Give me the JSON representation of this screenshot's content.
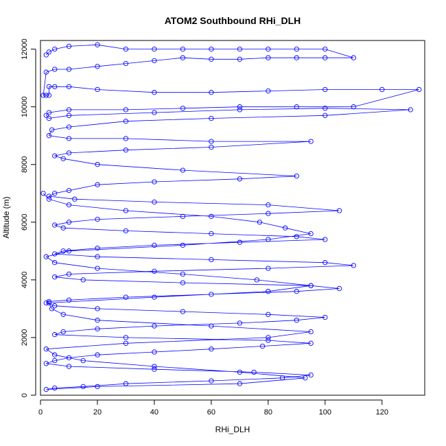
{
  "chart_data": {
    "type": "scatter",
    "title": "ATOM2 Southbound RHi_DLH",
    "xlabel": "RHi_DLH",
    "ylabel": "Altitude (m)",
    "xlim": [
      0,
      135
    ],
    "ylim": [
      0,
      12300
    ],
    "x_ticks": [
      "0",
      "20",
      "40",
      "60",
      "80",
      "100",
      "120"
    ],
    "y_ticks": [
      "0",
      "2000",
      "4000",
      "6000",
      "8000",
      "10000",
      "12000"
    ],
    "grid": false,
    "legend": "none",
    "marker": "open-circle",
    "connected": true,
    "color": "#0000ff",
    "series": [
      {
        "x": [
          2,
          3,
          5,
          10,
          20,
          30,
          40,
          50,
          60,
          70,
          80,
          90,
          100,
          110,
          100,
          90,
          80,
          70,
          60,
          50,
          40,
          30,
          20,
          10,
          5,
          2,
          1,
          2,
          3,
          3,
          5,
          10,
          20,
          40,
          60,
          80,
          100,
          120,
          133,
          110,
          90,
          70,
          50,
          30,
          10,
          3,
          2,
          3,
          10,
          40,
          70,
          100,
          130,
          100,
          60,
          30,
          10,
          4,
          3,
          10,
          30,
          60,
          95,
          60,
          30,
          10,
          5,
          8,
          20,
          50,
          90,
          70,
          40,
          20,
          10,
          5,
          3,
          12,
          40,
          80,
          105,
          80,
          50,
          20,
          10,
          5,
          8,
          30,
          60,
          90,
          100,
          70,
          40,
          20,
          8,
          5,
          20,
          60,
          100,
          110,
          80,
          40,
          10,
          5,
          15,
          50,
          95,
          105,
          90,
          60,
          30,
          10,
          3,
          2,
          5,
          20,
          50,
          80,
          100,
          90,
          70,
          40,
          20,
          8,
          5,
          30,
          80,
          95,
          78,
          60,
          40,
          20,
          10,
          5,
          2,
          10,
          40,
          75,
          95,
          85,
          60,
          30,
          15,
          5,
          2,
          20,
          70,
          93,
          70,
          40,
          15,
          5,
          2,
          30,
          80,
          95,
          60,
          20,
          8,
          4,
          3,
          40,
          80,
          95,
          76,
          50,
          20,
          5,
          2,
          10,
          50,
          80,
          95,
          86,
          77,
          60,
          30,
          10,
          3,
          1
        ],
        "y": [
          11800,
          11900,
          12000,
          12100,
          12150,
          12000,
          12000,
          12000,
          12000,
          12000,
          12000,
          12000,
          12000,
          11700,
          11700,
          11700,
          11700,
          11650,
          11650,
          11700,
          11600,
          11500,
          11400,
          11300,
          11300,
          11200,
          10400,
          10400,
          10400,
          10700,
          10700,
          10700,
          10600,
          10500,
          10500,
          10550,
          10600,
          10600,
          10600,
          10000,
          10000,
          10000,
          9950,
          9900,
          9900,
          9800,
          9700,
          9600,
          9700,
          9800,
          9900,
          9950,
          9900,
          9700,
          9600,
          9500,
          9300,
          9200,
          9000,
          8900,
          8900,
          8800,
          8800,
          8600,
          8500,
          8400,
          8300,
          8200,
          8000,
          7800,
          7600,
          7500,
          7400,
          7300,
          7100,
          7000,
          6900,
          6800,
          6700,
          6600,
          6400,
          6300,
          6200,
          6100,
          6000,
          5900,
          5800,
          5700,
          5600,
          5500,
          5400,
          5300,
          5200,
          5100,
          5000,
          4900,
          4800,
          4700,
          4600,
          4500,
          4400,
          4300,
          4200,
          4100,
          4000,
          3900,
          3800,
          3700,
          3600,
          3500,
          3400,
          3300,
          3250,
          3200,
          3100,
          3000,
          2900,
          2800,
          2700,
          2600,
          2500,
          2400,
          2300,
          2200,
          2100,
          2000,
          1900,
          1800,
          1700,
          1600,
          1500,
          1400,
          1300,
          1200,
          1100,
          1000,
          900,
          800,
          700,
          600,
          500,
          400,
          300,
          250,
          200,
          300,
          400,
          600,
          800,
          1000,
          1200,
          1400,
          1600,
          1800,
          2000,
          2200,
          2400,
          2600,
          2800,
          3000,
          3200,
          3400,
          3600,
          3800,
          4000,
          4200,
          4400,
          4600,
          4800,
          5000,
          5200,
          5400,
          5600,
          5800,
          6000,
          6200,
          6400,
          6600,
          6800,
          7000
        ]
      }
    ]
  }
}
